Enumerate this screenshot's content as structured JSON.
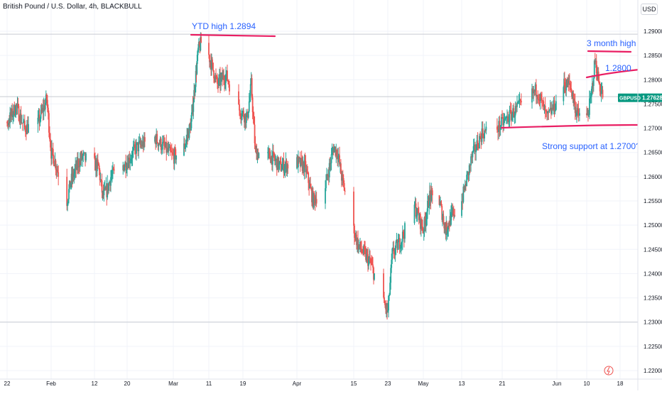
{
  "header": {
    "symbol_title": "British Pound / U.S. Dollar, 4h, BLACKBULL",
    "currency_button": "USD"
  },
  "colors": {
    "up": "#26a69a",
    "down": "#ef5350",
    "annotation_line": "#e91e63",
    "annotation_text": "#2962ff",
    "price_tag": "#089981",
    "grid": "#f0f3fa",
    "axis_text": "#131722"
  },
  "chart_data": {
    "type": "candlestick",
    "title": "British Pound / U.S. Dollar, 4h, BLACKBULL",
    "symbol": "GBPUSD",
    "last_price": "1.27628",
    "ylim": [
      1.2192,
      1.2925
    ],
    "y_ticks": [
      "1.29000",
      "1.28500",
      "1.28000",
      "1.27500",
      "1.27000",
      "1.26500",
      "1.26000",
      "1.25500",
      "1.25000",
      "1.24500",
      "1.24000",
      "1.23500",
      "1.23000",
      "1.22500",
      "1.22000"
    ],
    "x_ticks": [
      {
        "label": "22",
        "date": "2024-01-22"
      },
      {
        "label": "Feb",
        "date": "2024-02-01"
      },
      {
        "label": "12",
        "date": "2024-02-12"
      },
      {
        "label": "20",
        "date": "2024-02-20"
      },
      {
        "label": "Mar",
        "date": "2024-03-01"
      },
      {
        "label": "11",
        "date": "2024-03-11"
      },
      {
        "label": "19",
        "date": "2024-03-19"
      },
      {
        "label": "Apr",
        "date": "2024-04-01"
      },
      {
        "label": "15",
        "date": "2024-04-15"
      },
      {
        "label": "23",
        "date": "2024-04-23"
      },
      {
        "label": "May",
        "date": "2024-05-01"
      },
      {
        "label": "13",
        "date": "2024-05-13"
      },
      {
        "label": "21",
        "date": "2024-05-21"
      },
      {
        "label": "Jun",
        "date": "2024-06-01"
      },
      {
        "label": "10",
        "date": "2024-06-10"
      },
      {
        "label": "18",
        "date": "2024-06-18"
      }
    ],
    "reference_lines": [
      1.2894,
      1.2765,
      1.23
    ],
    "price_path": [
      [
        "2024-01-17",
        1.268
      ],
      [
        "2024-01-19",
        1.272
      ],
      [
        "2024-01-22",
        1.271
      ],
      [
        "2024-01-24",
        1.2745
      ],
      [
        "2024-01-26",
        1.27
      ],
      [
        "2024-01-29",
        1.271
      ],
      [
        "2024-01-31",
        1.276
      ],
      [
        "2024-02-01",
        1.265
      ],
      [
        "2024-02-02",
        1.263
      ],
      [
        "2024-02-05",
        1.255
      ],
      [
        "2024-02-06",
        1.259
      ],
      [
        "2024-02-08",
        1.263
      ],
      [
        "2024-02-09",
        1.264
      ],
      [
        "2024-02-13",
        1.262
      ],
      [
        "2024-02-14",
        1.256
      ],
      [
        "2024-02-15",
        1.257
      ],
      [
        "2024-02-16",
        1.26
      ],
      [
        "2024-02-20",
        1.263
      ],
      [
        "2024-02-22",
        1.266
      ],
      [
        "2024-02-26",
        1.268
      ],
      [
        "2024-02-28",
        1.266
      ],
      [
        "2024-03-01",
        1.264
      ],
      [
        "2024-03-04",
        1.266
      ],
      [
        "2024-03-06",
        1.271
      ],
      [
        "2024-03-08",
        1.286
      ],
      [
        "2024-03-09",
        1.288
      ],
      [
        "2024-03-11",
        1.285
      ],
      [
        "2024-03-13",
        1.279
      ],
      [
        "2024-03-15",
        1.281
      ],
      [
        "2024-03-18",
        1.274
      ],
      [
        "2024-03-20",
        1.272
      ],
      [
        "2024-03-21",
        1.279
      ],
      [
        "2024-03-22",
        1.265
      ],
      [
        "2024-03-26",
        1.264
      ],
      [
        "2024-03-28",
        1.262
      ],
      [
        "2024-04-01",
        1.263
      ],
      [
        "2024-04-03",
        1.262
      ],
      [
        "2024-04-05",
        1.255
      ],
      [
        "2024-04-08",
        1.258
      ],
      [
        "2024-04-10",
        1.266
      ],
      [
        "2024-04-11",
        1.265
      ],
      [
        "2024-04-12",
        1.26
      ],
      [
        "2024-04-15",
        1.249
      ],
      [
        "2024-04-16",
        1.246
      ],
      [
        "2024-04-19",
        1.242
      ],
      [
        "2024-04-22",
        1.234
      ],
      [
        "2024-04-23",
        1.232
      ],
      [
        "2024-04-24",
        1.244
      ],
      [
        "2024-04-26",
        1.247
      ],
      [
        "2024-04-29",
        1.254
      ],
      [
        "2024-05-01",
        1.249
      ],
      [
        "2024-05-03",
        1.256
      ],
      [
        "2024-05-06",
        1.255
      ],
      [
        "2024-05-08",
        1.249
      ],
      [
        "2024-05-10",
        1.252
      ],
      [
        "2024-05-13",
        1.255
      ],
      [
        "2024-05-15",
        1.264
      ],
      [
        "2024-05-17",
        1.269
      ],
      [
        "2024-05-20",
        1.27
      ],
      [
        "2024-05-22",
        1.272
      ],
      [
        "2024-05-24",
        1.274
      ],
      [
        "2024-05-28",
        1.278
      ],
      [
        "2024-05-30",
        1.272
      ],
      [
        "2024-06-03",
        1.279
      ],
      [
        "2024-06-05",
        1.279
      ],
      [
        "2024-06-07",
        1.273
      ],
      [
        "2024-06-10",
        1.272
      ],
      [
        "2024-06-11",
        1.276
      ],
      [
        "2024-06-12",
        1.284
      ],
      [
        "2024-06-13",
        1.279
      ],
      [
        "2024-06-14",
        1.2763
      ]
    ],
    "annotations": {
      "ytd_high": "YTD high 1.2894",
      "three_month_high": "3 month high",
      "level_1_28": "1.2800",
      "support": "Strong support at 1.2700?"
    }
  }
}
